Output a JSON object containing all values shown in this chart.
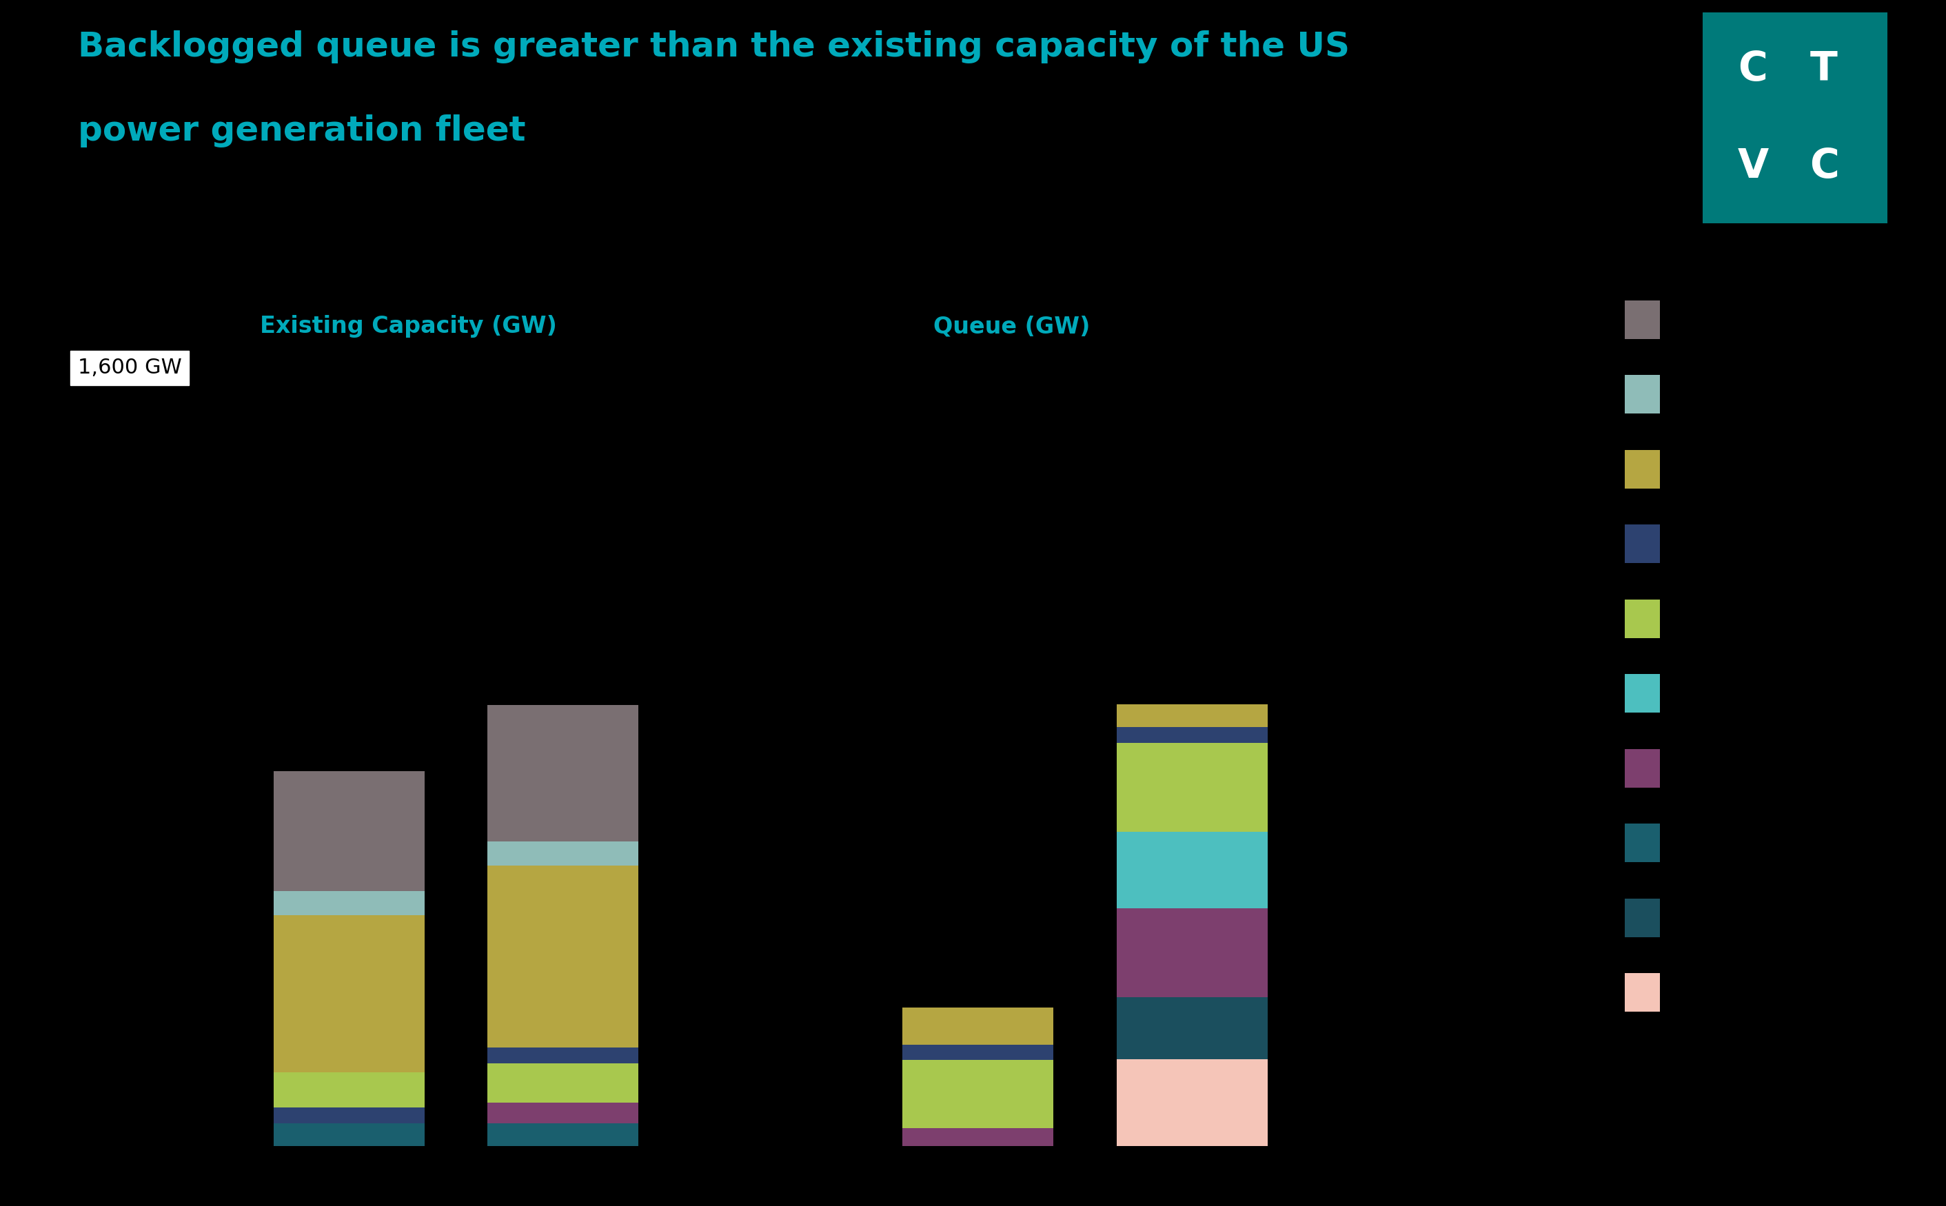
{
  "title_line1": "Backlogged queue is greater than the existing capacity of the US",
  "title_line2": "power generation fleet",
  "title_color": "#00AABB",
  "background_color": "#000000",
  "label_existing": "Existing Capacity (GW)",
  "label_queue": "Queue (GW)",
  "label_color": "#00AABB",
  "bar1": {
    "x": 1.0,
    "segments": [
      {
        "color": "#1a5f6e",
        "value": 55
      },
      {
        "color": "#2d4270",
        "value": 38
      },
      {
        "color": "#a8c84e",
        "value": 85
      },
      {
        "color": "#b5a642",
        "value": 380
      },
      {
        "color": "#8fbcb8",
        "value": 58
      },
      {
        "color": "#7a6f72",
        "value": 290
      }
    ]
  },
  "bar2": {
    "x": 1.85,
    "segments": [
      {
        "color": "#1a5f6e",
        "value": 55
      },
      {
        "color": "#7d3f6e",
        "value": 50
      },
      {
        "color": "#a8c84e",
        "value": 95
      },
      {
        "color": "#2d4270",
        "value": 38
      },
      {
        "color": "#b5a642",
        "value": 440
      },
      {
        "color": "#8fbcb8",
        "value": 58
      },
      {
        "color": "#7a6f72",
        "value": 330
      }
    ]
  },
  "bar3": {
    "x": 3.5,
    "segments": [
      {
        "color": "#7d3f6e",
        "value": 42
      },
      {
        "color": "#a8c84e",
        "value": 165
      },
      {
        "color": "#2d4270",
        "value": 38
      },
      {
        "color": "#b5a642",
        "value": 90
      }
    ]
  },
  "bar4": {
    "x": 4.35,
    "segments": [
      {
        "color": "#f5c5b8",
        "value": 210
      },
      {
        "color": "#1b4f5e",
        "value": 150
      },
      {
        "color": "#7d3f6e",
        "value": 215
      },
      {
        "color": "#4dbfbf",
        "value": 185
      },
      {
        "color": "#a8c84e",
        "value": 215
      },
      {
        "color": "#2d4270",
        "value": 38
      },
      {
        "color": "#b5a642",
        "value": 55
      }
    ]
  },
  "legend_items": [
    {
      "color": "#7a6f72"
    },
    {
      "color": "#8fbcb8"
    },
    {
      "color": "#b5a642"
    },
    {
      "color": "#2d4270"
    },
    {
      "color": "#a8c84e"
    },
    {
      "color": "#4dbfbf"
    },
    {
      "color": "#7d3f6e"
    },
    {
      "color": "#1a5f6e"
    },
    {
      "color": "#1b4f5e"
    },
    {
      "color": "#f5c5b8"
    }
  ],
  "ctvc_bg": "#007A7A",
  "bar_width": 0.6
}
